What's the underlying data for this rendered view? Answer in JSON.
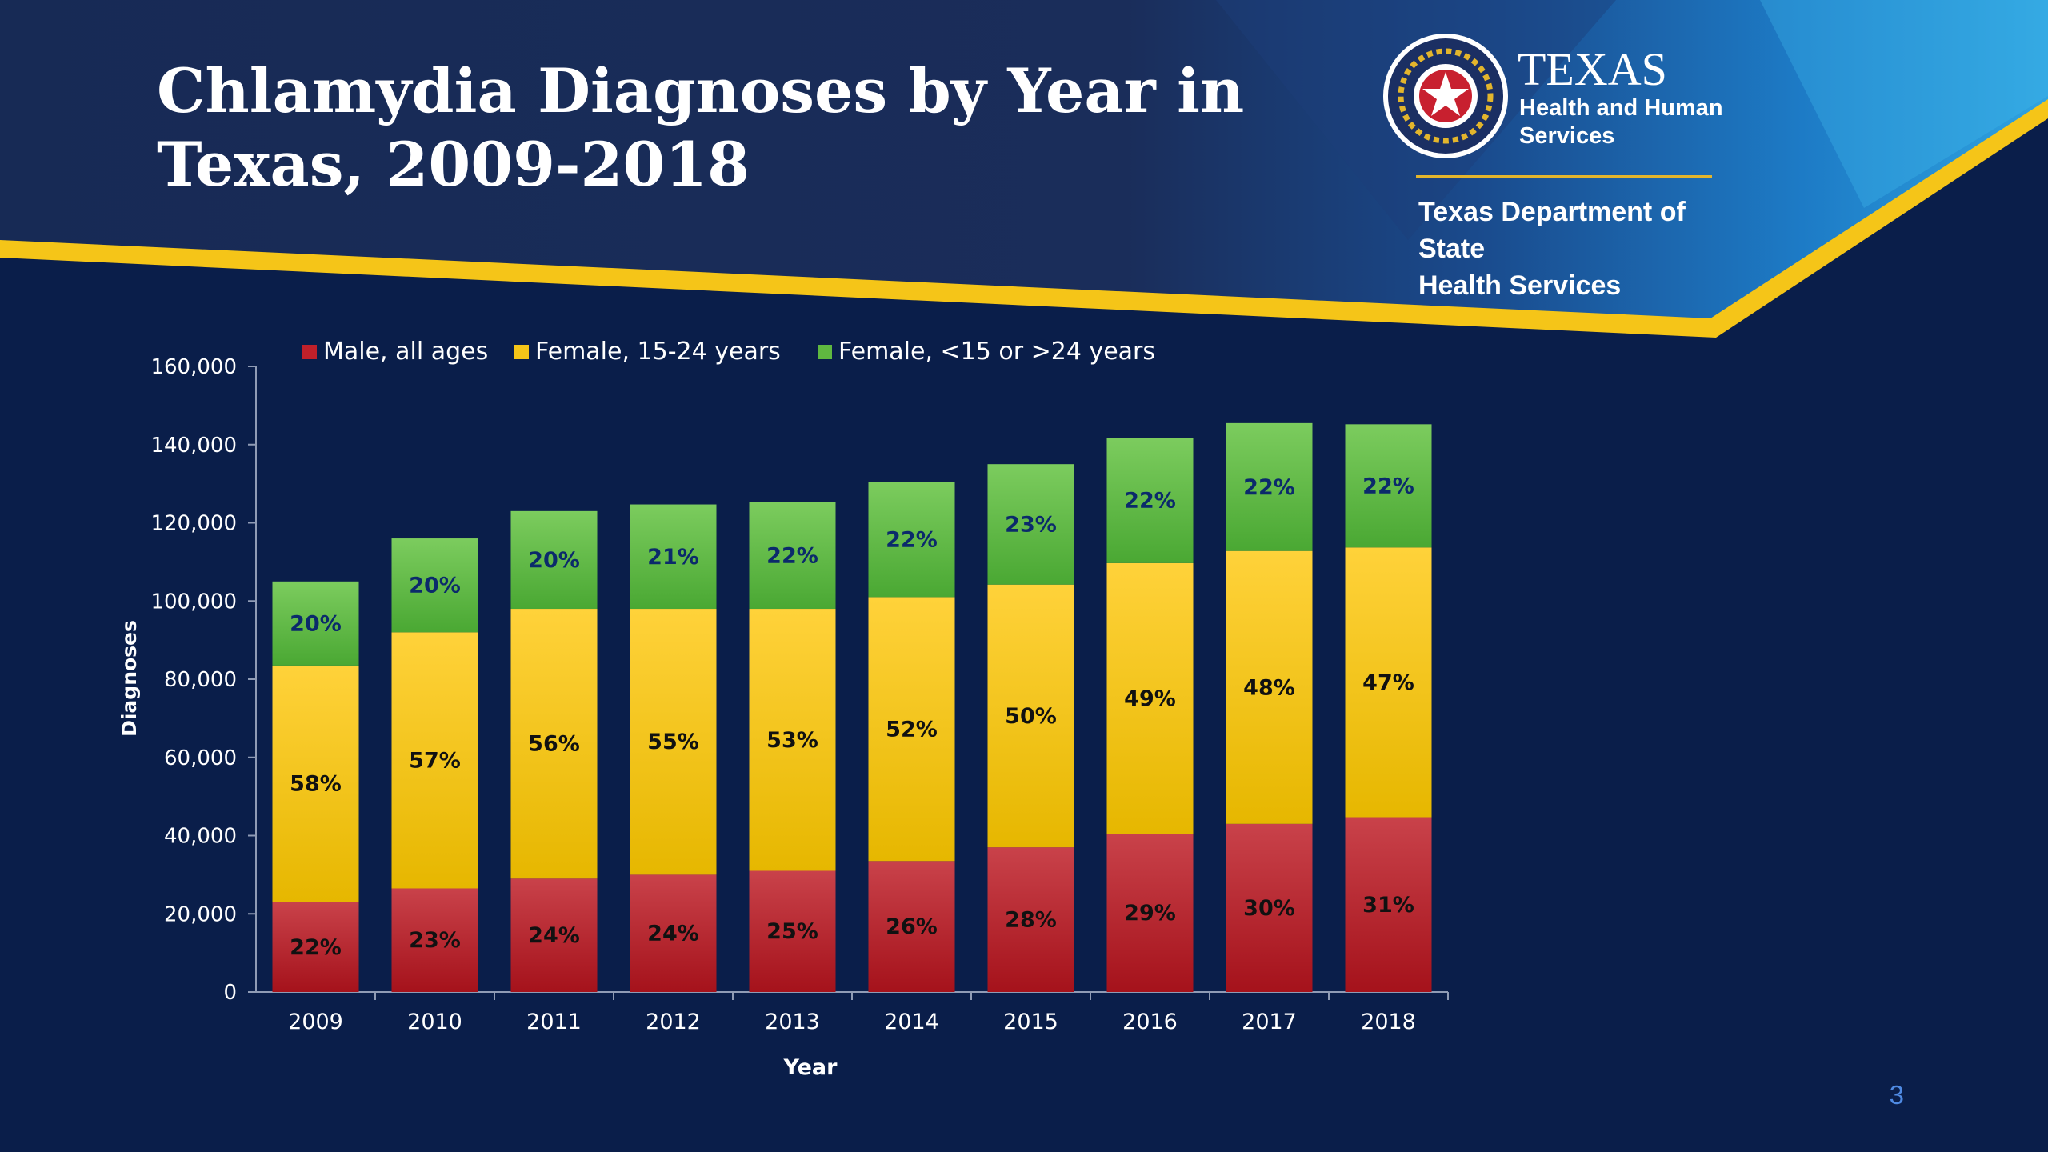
{
  "slide": {
    "title_line1": "Chlamydia Diagnoses by Year in",
    "title_line2": "Texas, 2009-2018",
    "page_number": "3"
  },
  "logo": {
    "texas": "TEXAS",
    "hhs_line1": "Health and Human",
    "hhs_line2": "Services",
    "dshs_line1": "Texas Department of State",
    "dshs_line2": "Health Services"
  },
  "colors": {
    "background": "#0a1e4a",
    "header": "#172a55",
    "accent_band": "#f5c518",
    "male": "#c0202a",
    "female_15_24": "#f5c518",
    "female_other": "#5fb840"
  },
  "chart_data": {
    "type": "bar",
    "stacked": true,
    "xlabel": "Year",
    "ylabel": "Diagnoses",
    "ylim": [
      0,
      160000
    ],
    "yticks": [
      0,
      20000,
      40000,
      60000,
      80000,
      100000,
      120000,
      140000,
      160000
    ],
    "ytick_labels": [
      "0",
      "20,000",
      "40,000",
      "60,000",
      "80,000",
      "100,000",
      "120,000",
      "140,000",
      "160,000"
    ],
    "legend_position": "top",
    "grid": false,
    "categories": [
      "2009",
      "2010",
      "2011",
      "2012",
      "2013",
      "2014",
      "2015",
      "2016",
      "2017",
      "2018"
    ],
    "series": [
      {
        "name": "Male, all ages",
        "color": "#c0202a",
        "values": [
          23000,
          26500,
          29000,
          30000,
          31000,
          33500,
          37000,
          40500,
          43000,
          44700
        ],
        "labels": [
          "22%",
          "23%",
          "24%",
          "24%",
          "25%",
          "26%",
          "28%",
          "29%",
          "30%",
          "31%"
        ]
      },
      {
        "name": "Female, 15-24 years",
        "color": "#f5c518",
        "values": [
          60500,
          65500,
          69000,
          68000,
          67000,
          67500,
          67200,
          69200,
          69800,
          69000
        ],
        "labels": [
          "58%",
          "57%",
          "56%",
          "55%",
          "53%",
          "52%",
          "50%",
          "49%",
          "48%",
          "47%"
        ]
      },
      {
        "name": "Female, <15 or >24 years",
        "color": "#5fb840",
        "values": [
          21500,
          24000,
          25000,
          26700,
          27300,
          29500,
          30800,
          32000,
          32700,
          31500
        ],
        "labels": [
          "20%",
          "20%",
          "20%",
          "21%",
          "22%",
          "22%",
          "23%",
          "22%",
          "22%",
          "22%"
        ]
      }
    ]
  }
}
